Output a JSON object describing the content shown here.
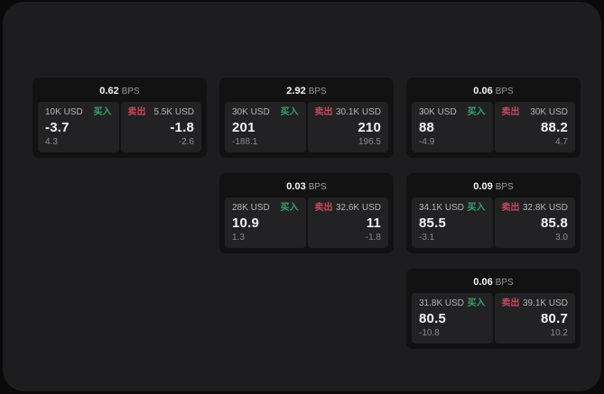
{
  "labels": {
    "bps_unit": "BPS",
    "buy": "买入",
    "sell": "卖出"
  },
  "colors": {
    "background": "#0a0a0a",
    "panel": "#1d1d1f",
    "card": "#121213",
    "tile": "#222224",
    "buy_green": "#35a267",
    "sell_red": "#c44a5b"
  },
  "cards": [
    {
      "bps": "0.62",
      "buy": {
        "amount": "10K USD",
        "value": "-3.7",
        "delta": "4.3"
      },
      "sell": {
        "amount": "5.5K USD",
        "value": "-1.8",
        "delta": "-2.6"
      }
    },
    {
      "bps": "2.92",
      "buy": {
        "amount": "30K USD",
        "value": "201",
        "delta": "-188.1"
      },
      "sell": {
        "amount": "30.1K USD",
        "value": "210",
        "delta": "196.5"
      }
    },
    {
      "bps": "0.06",
      "buy": {
        "amount": "30K USD",
        "value": "88",
        "delta": "-4.9"
      },
      "sell": {
        "amount": "30K USD",
        "value": "88.2",
        "delta": "4.7"
      }
    },
    {
      "bps": "0.03",
      "buy": {
        "amount": "28K USD",
        "value": "10.9",
        "delta": "1.3"
      },
      "sell": {
        "amount": "32.6K USD",
        "value": "11",
        "delta": "-1.8"
      }
    },
    {
      "bps": "0.09",
      "buy": {
        "amount": "34.1K USD",
        "value": "85.5",
        "delta": "-3.1"
      },
      "sell": {
        "amount": "32.8K USD",
        "value": "85.8",
        "delta": "3.0"
      }
    },
    {
      "bps": "0.06",
      "buy": {
        "amount": "31.8K USD",
        "value": "80.5",
        "delta": "-10.8"
      },
      "sell": {
        "amount": "39.1K USD",
        "value": "80.7",
        "delta": "10.2"
      }
    }
  ]
}
